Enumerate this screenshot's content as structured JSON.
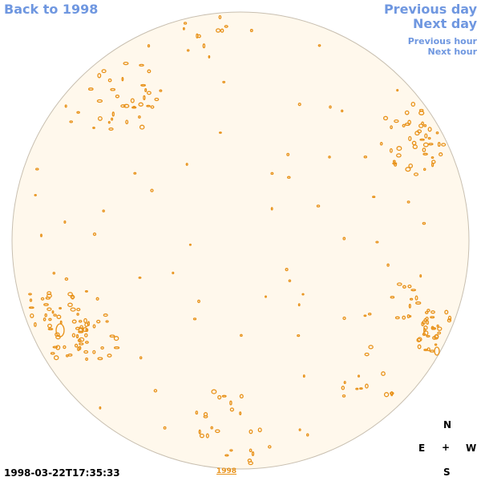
{
  "nav": {
    "back_label": "Back to 1998",
    "prev_day_label": "Previous day",
    "next_day_label": "Next day",
    "prev_hour_label": "Previous hour",
    "next_hour_label": "Next hour"
  },
  "footer": {
    "timestamp": "1998-03-22T17:35:33",
    "year_link": "1998"
  },
  "compass": {
    "north": "N",
    "east": "E",
    "center": "+",
    "west": "W",
    "south": "S"
  },
  "colors": {
    "link": "#6f97e0",
    "disk_fill": "#fff8ec",
    "disk_border": "#c8bfb0",
    "contour": "#e8921a"
  }
}
